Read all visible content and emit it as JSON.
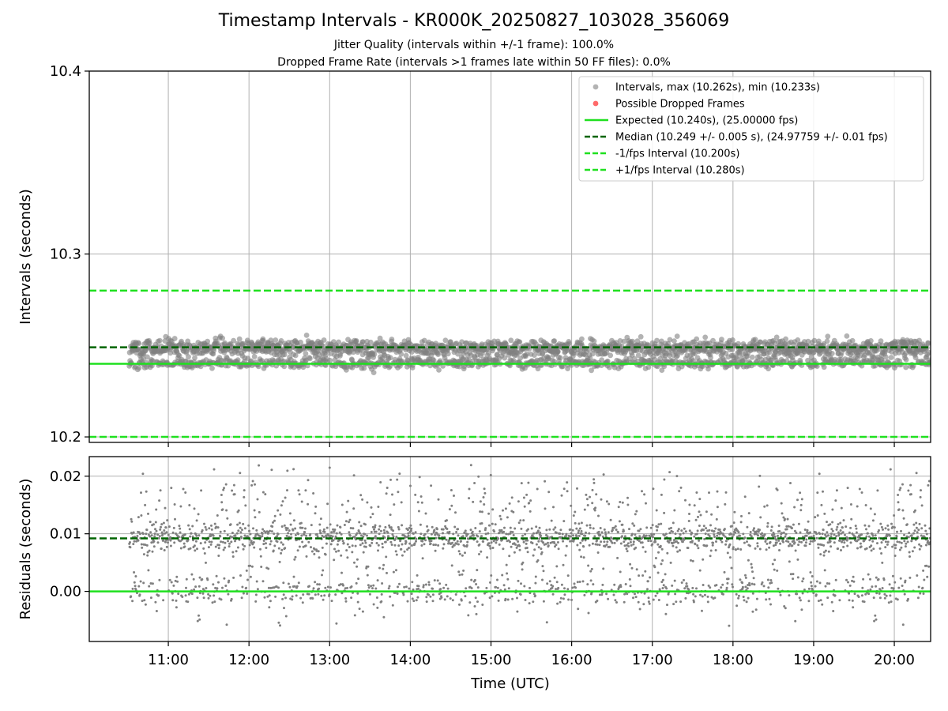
{
  "title": "Timestamp Intervals - KR000K_20250827_103028_356069",
  "subtitle_lines": [
    "Jitter Quality (intervals within +/-1 frame): 100.0%",
    "Dropped Frame Rate (intervals >1 frames late within 50 FF files): 0.0%"
  ],
  "colors": {
    "points": "#808080",
    "dropped": "#ff5a5a",
    "expected": "#1fe01f",
    "median": "#006400",
    "fps_bound": "#1fe01f",
    "grid": "#b0b0b0"
  },
  "chart_data": [
    {
      "type": "scatter",
      "ylabel": "Intervals (seconds)",
      "ylim": [
        10.197,
        10.4
      ],
      "yticks": [
        "10.2",
        "10.3",
        "10.4"
      ],
      "xlim_hours": [
        10.02,
        20.45
      ],
      "grid": true,
      "legend_position": "top-right",
      "series": [
        {
          "name": "Intervals, max (10.262s), min (10.233s)",
          "kind": "points",
          "start_time": "10:31",
          "end_time": "20:27",
          "band": [
            10.233,
            10.262
          ],
          "upper_level": 10.249,
          "lower_level": 10.24
        },
        {
          "name": "Possible Dropped Frames",
          "kind": "points",
          "values": []
        },
        {
          "name": "Expected (10.240s), (25.00000 fps)",
          "kind": "hline",
          "y": 10.24
        },
        {
          "name": "Median (10.249 +/- 0.005 s), (24.97759 +/- 0.01 fps)",
          "kind": "hline",
          "y": 10.249
        },
        {
          "name": "-1/fps Interval (10.200s)",
          "kind": "hline",
          "y": 10.2
        },
        {
          "name": "+1/fps Interval (10.280s)",
          "kind": "hline",
          "y": 10.28
        }
      ]
    },
    {
      "type": "scatter",
      "ylabel": "Residuals (seconds)",
      "xlabel": "Time (UTC)",
      "ylim": [
        -0.0087,
        0.0234
      ],
      "yticks": [
        "0.00",
        "0.01",
        "0.02"
      ],
      "xticks": [
        "11:00",
        "12:00",
        "13:00",
        "14:00",
        "15:00",
        "16:00",
        "17:00",
        "18:00",
        "19:00",
        "20:00"
      ],
      "grid": true,
      "series": [
        {
          "name": "Residuals",
          "kind": "points",
          "start_time": "10:31",
          "end_time": "20:27",
          "band": [
            -0.0068,
            0.0222
          ]
        },
        {
          "name": "Expected",
          "kind": "hline",
          "y": 0.0
        },
        {
          "name": "Median",
          "kind": "hline",
          "y": 0.0092
        }
      ]
    }
  ]
}
